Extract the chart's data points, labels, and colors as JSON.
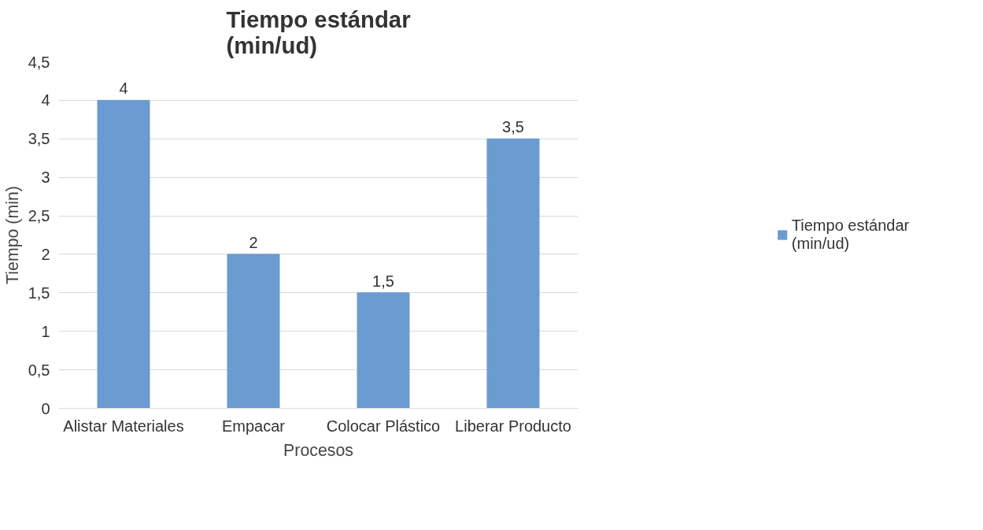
{
  "chart_data": {
    "type": "bar",
    "title": "Tiempo estándar\n(min/ud)",
    "xlabel": "Procesos",
    "ylabel": "Tiempo (min)",
    "categories": [
      "Alistar Materiales",
      "Empacar",
      "Colocar Plástico",
      "Liberar Producto"
    ],
    "series": [
      {
        "name": "Tiempo estándar\n(min/ud)",
        "color": "#6a9bd1",
        "values": [
          4,
          2,
          1.5,
          3.5
        ],
        "value_labels": [
          "4",
          "2",
          "1,5",
          "3,5"
        ]
      }
    ],
    "ylim": [
      0,
      4.5
    ],
    "yticks": [
      0,
      {
        "value": 0.5,
        "label": "0,5"
      },
      1,
      {
        "value": 1.5,
        "label": "1,5"
      },
      2,
      {
        "value": 2.5,
        "label": "2,5"
      },
      3,
      {
        "value": 3.5,
        "label": "3,5"
      },
      4,
      {
        "value": 4.5,
        "label": "4,5"
      }
    ],
    "grid": "y",
    "legend": "right"
  }
}
